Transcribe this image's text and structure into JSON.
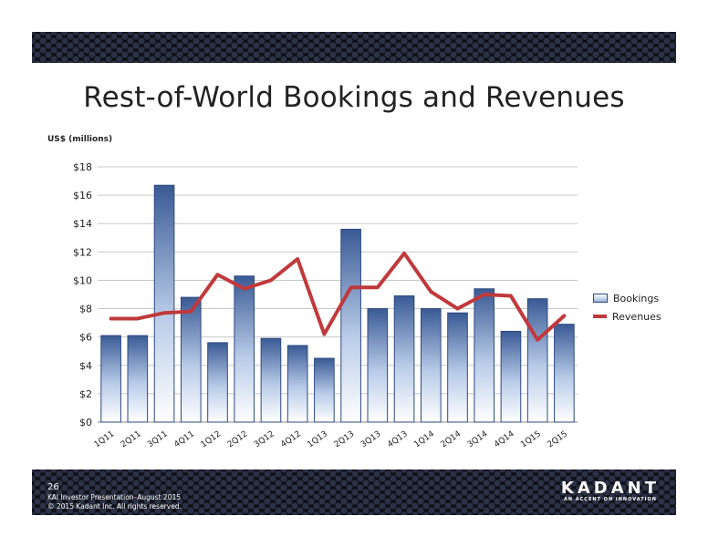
{
  "title": "Rest-of-World Bookings and Revenues",
  "units_label": "US$ (millions)",
  "footer": {
    "page_number": "26",
    "presentation": "KAI Investor Presentation–August 2015",
    "copyright": "© 2015 Kadant Inc. All rights reserved."
  },
  "logo": {
    "name": "KADANT",
    "tagline": "AN ACCENT ON INNOVATION"
  },
  "colors": {
    "bar_edge": "#2d4a80",
    "bar_top": "#3a5a95",
    "bar_bottom": "#ffffff",
    "revenue_line": "#c0393c",
    "band": "#0d0d14"
  },
  "chart_data": {
    "type": "bar",
    "categories": [
      "1Q11",
      "2Q11",
      "3Q11",
      "4Q11",
      "1Q12",
      "2Q12",
      "3Q12",
      "4Q12",
      "1Q13",
      "2Q13",
      "3Q13",
      "4Q13",
      "1Q14",
      "2Q14",
      "3Q14",
      "4Q14",
      "1Q15",
      "2Q15"
    ],
    "series": [
      {
        "name": "Bookings",
        "kind": "bar",
        "values": [
          6.1,
          6.1,
          16.7,
          8.8,
          5.6,
          10.3,
          5.9,
          5.4,
          4.5,
          13.6,
          8.0,
          8.9,
          8.0,
          7.7,
          9.4,
          6.4,
          8.7,
          6.9
        ]
      },
      {
        "name": "Revenues",
        "kind": "line",
        "values": [
          7.3,
          7.3,
          7.7,
          7.8,
          10.4,
          9.4,
          10.0,
          11.5,
          6.2,
          9.5,
          9.5,
          11.9,
          9.2,
          8.0,
          9.0,
          8.9,
          5.8,
          7.5
        ]
      }
    ],
    "ylim": [
      0,
      18
    ],
    "yticks": [
      "$0",
      "$2",
      "$4",
      "$6",
      "$8",
      "$10",
      "$12",
      "$14",
      "$16",
      "$18"
    ],
    "ytick_values": [
      0,
      2,
      4,
      6,
      8,
      10,
      12,
      14,
      16,
      18
    ],
    "grid": true,
    "legend": "right",
    "xlabel": "",
    "ylabel": ""
  }
}
